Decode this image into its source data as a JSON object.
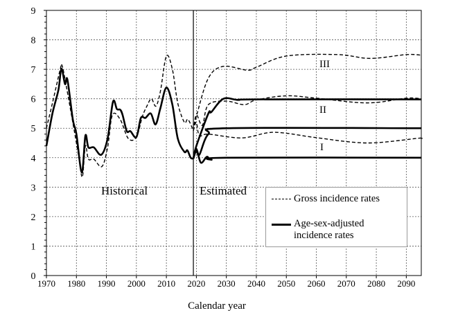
{
  "chart_data": {
    "type": "line",
    "title": "",
    "xlabel": "Calendar year",
    "ylabel": "",
    "xlim": [
      1970,
      2095
    ],
    "ylim": [
      0,
      9
    ],
    "x_ticks": [
      1970,
      1980,
      1990,
      2000,
      2010,
      2020,
      2030,
      2040,
      2050,
      2060,
      2070,
      2080,
      2090
    ],
    "y_ticks": [
      0,
      1,
      2,
      3,
      4,
      5,
      6,
      7,
      8,
      9
    ],
    "grid": true,
    "divider_year": 2019,
    "annotations": {
      "historical": "Historical",
      "estimated": "Estimated",
      "scenario_3": "III",
      "scenario_2": "II",
      "scenario_1": "I"
    },
    "legend": {
      "placement": "bottom-right",
      "gross": "Gross incidence rates",
      "adjusted": "Age-sex-adjusted incidence rates"
    },
    "series": [
      {
        "name": "Gross incidence rates (historical)",
        "style": "dashed",
        "points": [
          [
            1970,
            5.0
          ],
          [
            1972,
            5.85
          ],
          [
            1974.6,
            7.0
          ],
          [
            1975.2,
            7.13
          ],
          [
            1976.5,
            6.5
          ],
          [
            1980,
            4.5
          ],
          [
            1981,
            3.9
          ],
          [
            1982,
            3.35
          ],
          [
            1983,
            4.4
          ],
          [
            1984,
            3.95
          ],
          [
            1985.8,
            3.95
          ],
          [
            1988.5,
            3.7
          ],
          [
            1990.4,
            4.35
          ],
          [
            1992,
            5.45
          ],
          [
            1994.6,
            5.3
          ],
          [
            1997.3,
            4.65
          ],
          [
            2000,
            4.7
          ],
          [
            2002,
            5.4
          ],
          [
            2003.5,
            5.75
          ],
          [
            2005,
            6.0
          ],
          [
            2006.5,
            5.75
          ],
          [
            2008,
            6.25
          ],
          [
            2010,
            7.45
          ],
          [
            2012,
            7.0
          ],
          [
            2013.8,
            5.85
          ],
          [
            2016,
            5.2
          ],
          [
            2017.2,
            5.3
          ],
          [
            2019,
            4.92
          ]
        ]
      },
      {
        "name": "Age-sex-adjusted incidence rates (historical)",
        "style": "solid",
        "points": [
          [
            1970,
            4.4
          ],
          [
            1972,
            5.5
          ],
          [
            1974,
            6.3
          ],
          [
            1975,
            7.02
          ],
          [
            1976.2,
            6.5
          ],
          [
            1977,
            6.65
          ],
          [
            1978.8,
            5.3
          ],
          [
            1980,
            4.8
          ],
          [
            1981.8,
            3.5
          ],
          [
            1983,
            4.75
          ],
          [
            1984,
            4.35
          ],
          [
            1985.8,
            4.35
          ],
          [
            1988.3,
            4.1
          ],
          [
            1990.4,
            4.65
          ],
          [
            1992.2,
            5.9
          ],
          [
            1993.5,
            5.65
          ],
          [
            1994.6,
            5.63
          ],
          [
            1995.4,
            5.45
          ],
          [
            1996.8,
            4.9
          ],
          [
            1998,
            4.9
          ],
          [
            2000,
            4.7
          ],
          [
            2001.5,
            5.35
          ],
          [
            2003,
            5.35
          ],
          [
            2004.8,
            5.5
          ],
          [
            2006.4,
            5.13
          ],
          [
            2008,
            5.68
          ],
          [
            2010,
            6.38
          ],
          [
            2012,
            5.8
          ],
          [
            2013.8,
            4.65
          ],
          [
            2016,
            4.2
          ],
          [
            2017,
            4.25
          ],
          [
            2018.1,
            4.0
          ],
          [
            2019,
            3.97
          ]
        ]
      },
      {
        "name": "Gross incidence rates III",
        "style": "dashed",
        "points": [
          [
            2019,
            4.92
          ],
          [
            2020,
            5.4
          ],
          [
            2024,
            6.7
          ],
          [
            2029,
            7.1
          ],
          [
            2037,
            6.97
          ],
          [
            2040,
            7.07
          ],
          [
            2050,
            7.45
          ],
          [
            2067,
            7.5
          ],
          [
            2078,
            7.37
          ],
          [
            2090,
            7.5
          ],
          [
            2095,
            7.48
          ]
        ]
      },
      {
        "name": "Gross incidence rates II",
        "style": "dashed",
        "points": [
          [
            2019,
            4.92
          ],
          [
            2020,
            5.45
          ],
          [
            2022,
            5.1
          ],
          [
            2024,
            5.8
          ],
          [
            2030,
            5.92
          ],
          [
            2036,
            5.8
          ],
          [
            2040,
            5.96
          ],
          [
            2050,
            6.1
          ],
          [
            2060,
            6.02
          ],
          [
            2077,
            5.86
          ],
          [
            2090,
            6.02
          ],
          [
            2095,
            6.0
          ]
        ]
      },
      {
        "name": "Gross incidence rates I",
        "style": "dashed",
        "points": [
          [
            2019,
            4.92
          ],
          [
            2020,
            5.2
          ],
          [
            2021,
            4.75
          ],
          [
            2024,
            4.8
          ],
          [
            2035,
            4.67
          ],
          [
            2044,
            4.85
          ],
          [
            2050,
            4.83
          ],
          [
            2060,
            4.68
          ],
          [
            2077,
            4.5
          ],
          [
            2094,
            4.66
          ],
          [
            2095,
            4.65
          ]
        ]
      },
      {
        "name": "Age-sex-adjusted incidence rates II",
        "style": "solid",
        "points": [
          [
            2019,
            3.97
          ],
          [
            2020,
            4.4
          ],
          [
            2024,
            5.5
          ],
          [
            2025,
            5.55
          ],
          [
            2029,
            6.0
          ],
          [
            2034,
            5.96
          ],
          [
            2040,
            5.98
          ],
          [
            2095,
            5.98
          ]
        ]
      },
      {
        "name": "Age-sex-adjusted incidence rates I",
        "style": "solid",
        "points": [
          [
            2019,
            3.97
          ],
          [
            2020,
            4.25
          ],
          [
            2021,
            4.1
          ],
          [
            2024,
            4.8
          ],
          [
            2030,
            5.0
          ],
          [
            2095,
            5.0
          ]
        ]
      },
      {
        "name": "Age-sex-adjusted incidence rates (lower)",
        "style": "solid",
        "points": [
          [
            2019,
            3.97
          ],
          [
            2020,
            4.3
          ],
          [
            2021.5,
            3.83
          ],
          [
            2023.5,
            4.03
          ],
          [
            2025,
            3.93
          ],
          [
            2030,
            4.0
          ],
          [
            2095,
            4.0
          ]
        ]
      }
    ]
  }
}
